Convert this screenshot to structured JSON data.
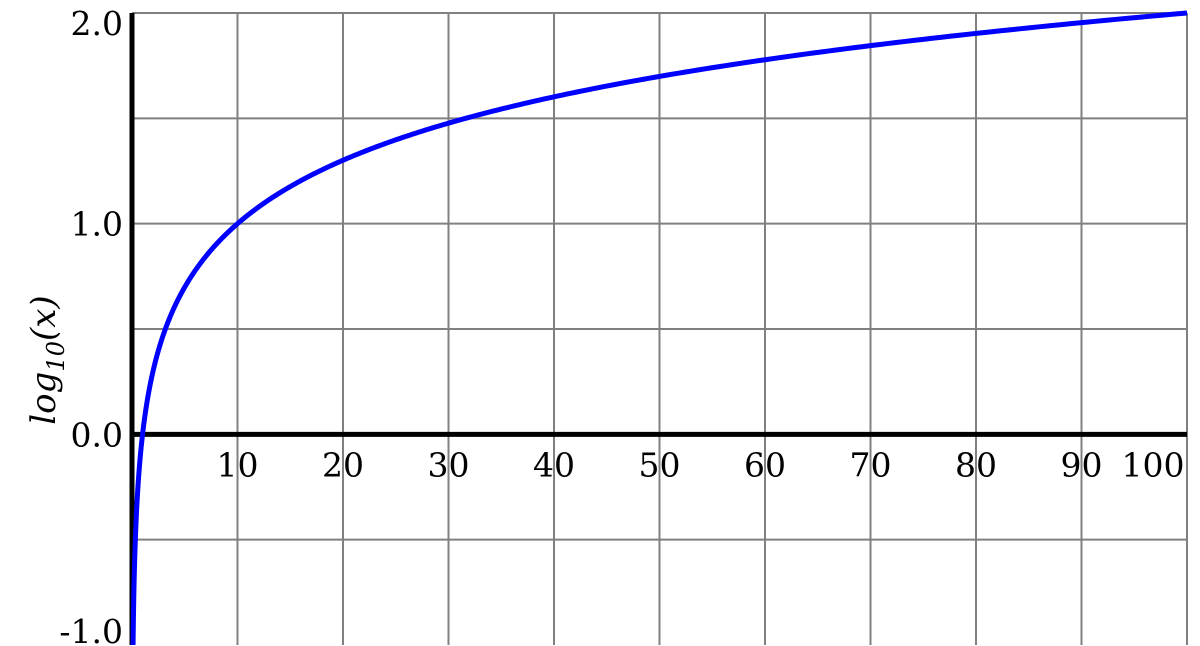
{
  "chart_data": {
    "type": "line",
    "title": "",
    "xlabel": "",
    "ylabel": {
      "base": "log",
      "subscript": "10",
      "arg": "(x)"
    },
    "xlim": [
      0,
      100
    ],
    "ylim": [
      -1.0,
      2.0
    ],
    "x_ticks": [
      10,
      20,
      30,
      40,
      50,
      60,
      70,
      80,
      90,
      100
    ],
    "x_tick_labels": [
      "10",
      "20",
      "30",
      "40",
      "50",
      "60",
      "70",
      "80",
      "90",
      "100"
    ],
    "y_ticks": [
      -1.0,
      0.0,
      1.0,
      2.0
    ],
    "y_tick_labels": [
      "-1.0",
      "0.0",
      "1.0",
      "2.0"
    ],
    "y_grid": [
      -0.5,
      0.0,
      0.5,
      1.0,
      1.5,
      2.0
    ],
    "grid": true,
    "series": [
      {
        "function": "log10(x)",
        "color": "#0000ff",
        "x": [
          0.1,
          1,
          2,
          5,
          10,
          20,
          30,
          40,
          50,
          60,
          70,
          80,
          90,
          100
        ],
        "values": [
          -1.0,
          0.0,
          0.301,
          0.699,
          1.0,
          1.301,
          1.477,
          1.602,
          1.699,
          1.778,
          1.845,
          1.903,
          1.954,
          2.0
        ]
      }
    ],
    "axis_color": "#000000",
    "grid_color": "#808080"
  }
}
